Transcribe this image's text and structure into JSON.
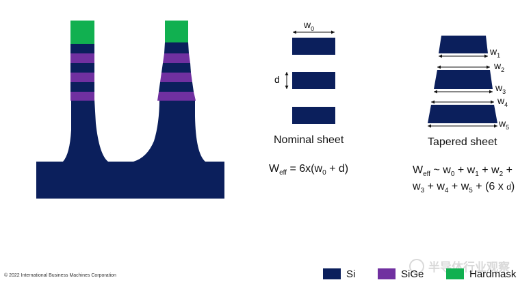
{
  "colors": {
    "si": "#0b1f5c",
    "sige": "#7030a0",
    "hardmask": "#11b050",
    "watermark": "#d9d9d9"
  },
  "nominal": {
    "label": "Nominal sheet",
    "w0": "w",
    "w0_sub": "0",
    "d": "d",
    "formula": {
      "w": "W",
      "eff": "eff",
      "eq": " = 6x(w",
      "sub0": "0",
      "tail": " + d)"
    }
  },
  "tapered": {
    "label": "Tapered sheet",
    "widths": [
      {
        "w": "w",
        "sub": "1"
      },
      {
        "w": "w",
        "sub": "2"
      },
      {
        "w": "w",
        "sub": "3"
      },
      {
        "w": "w",
        "sub": "4"
      },
      {
        "w": "w",
        "sub": "5"
      }
    ],
    "formula_line1": {
      "w": "W",
      "eff": "eff",
      "a": " ~ w",
      "s0": "0",
      "b": " + w",
      "s1": "1",
      "c": " + w",
      "s2": "2",
      "d": " +"
    },
    "formula_line2": {
      "a": "w",
      "s3": "3",
      "b": " + w",
      "s4": "4",
      "c": " + w",
      "s5": "5",
      "d": " + (6 x ",
      "e": "d",
      "f": ")"
    }
  },
  "legend": {
    "si": "Si",
    "sige": "SiGe",
    "hardmask": "Hardmask"
  },
  "copyright": "© 2022 International Business Machines Corporation",
  "watermark": "半导体行业观察"
}
